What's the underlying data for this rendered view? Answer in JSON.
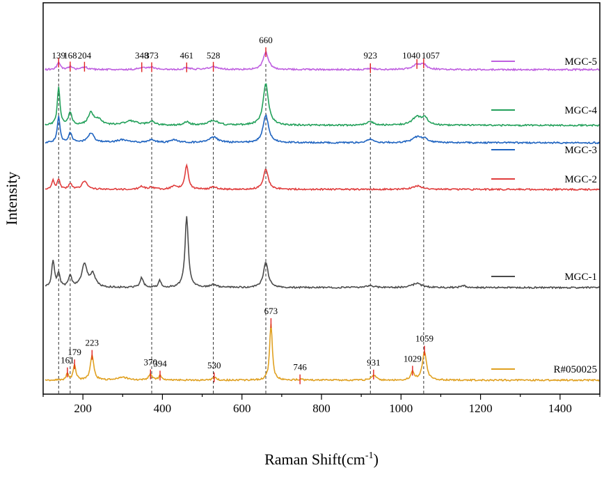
{
  "chart_data": {
    "type": "line",
    "xlabel": "Raman Shift(cm",
    "xlabel_sup": "-1",
    "xlabel_close": ")",
    "ylabel": "Intensity",
    "xlim": [
      100,
      1500
    ],
    "xticks": [
      200,
      400,
      600,
      800,
      1000,
      1200,
      1400
    ],
    "y_ticks_shown": false,
    "grid": false,
    "legend_placement": "right",
    "reference_lines": [
      139,
      168,
      373,
      528,
      660,
      923,
      1057
    ],
    "series": [
      {
        "name": "MGC-5",
        "color": "#BF5FE0",
        "baseline": 100,
        "peaks": [
          [
            139,
            10,
            5
          ],
          [
            168,
            4,
            6
          ],
          [
            204,
            4,
            8
          ],
          [
            348,
            3,
            10
          ],
          [
            373,
            3,
            10
          ],
          [
            461,
            3,
            8
          ],
          [
            528,
            4,
            14
          ],
          [
            660,
            25,
            8
          ],
          [
            923,
            2,
            10
          ],
          [
            1040,
            7,
            14
          ],
          [
            1057,
            6,
            8
          ]
        ],
        "peak_labels": [
          139,
          168,
          204,
          348,
          373,
          461,
          528,
          660,
          923,
          1040,
          1057
        ]
      },
      {
        "name": "MGC-4",
        "color": "#22A05A",
        "baseline": 180,
        "peaks": [
          [
            139,
            55,
            4
          ],
          [
            168,
            18,
            5
          ],
          [
            220,
            18,
            8
          ],
          [
            240,
            8,
            10
          ],
          [
            320,
            6,
            20
          ],
          [
            373,
            5,
            10
          ],
          [
            461,
            5,
            8
          ],
          [
            528,
            7,
            14
          ],
          [
            660,
            60,
            8
          ],
          [
            923,
            5,
            10
          ],
          [
            1040,
            12,
            14
          ],
          [
            1060,
            10,
            8
          ]
        ],
        "peak_labels": []
      },
      {
        "name": "MGC-3",
        "color": "#1E63C0",
        "baseline": 205,
        "peaks": [
          [
            139,
            38,
            4
          ],
          [
            168,
            14,
            5
          ],
          [
            220,
            14,
            9
          ],
          [
            300,
            4,
            20
          ],
          [
            373,
            4,
            10
          ],
          [
            430,
            4,
            10
          ],
          [
            528,
            8,
            14
          ],
          [
            660,
            40,
            8
          ],
          [
            923,
            5,
            10
          ],
          [
            1040,
            8,
            14
          ],
          [
            1060,
            6,
            8
          ]
        ],
        "peak_labels": []
      },
      {
        "name": "MGC-2",
        "color": "#E03C3C",
        "baseline": 272,
        "peaks": [
          [
            125,
            12,
            4
          ],
          [
            139,
            14,
            4
          ],
          [
            168,
            8,
            5
          ],
          [
            204,
            12,
            8
          ],
          [
            348,
            4,
            8
          ],
          [
            373,
            3,
            8
          ],
          [
            430,
            5,
            8
          ],
          [
            461,
            35,
            5
          ],
          [
            528,
            3,
            10
          ],
          [
            660,
            30,
            7
          ],
          [
            1040,
            5,
            14
          ]
        ],
        "peak_labels": []
      },
      {
        "name": "MGC-1",
        "color": "#4A4A4A",
        "baseline": 413,
        "peaks": [
          [
            125,
            38,
            4
          ],
          [
            139,
            20,
            4
          ],
          [
            168,
            16,
            5
          ],
          [
            204,
            33,
            8
          ],
          [
            225,
            18,
            8
          ],
          [
            348,
            14,
            5
          ],
          [
            393,
            10,
            4
          ],
          [
            461,
            102,
            5
          ],
          [
            528,
            4,
            10
          ],
          [
            660,
            36,
            7
          ],
          [
            923,
            3,
            10
          ],
          [
            1040,
            6,
            14
          ],
          [
            1157,
            3,
            6
          ]
        ],
        "peak_labels": []
      },
      {
        "name": "R#050025",
        "color": "#E0A020",
        "baseline": 546,
        "peaks": [
          [
            161,
            10,
            3
          ],
          [
            179,
            22,
            4
          ],
          [
            223,
            36,
            5
          ],
          [
            300,
            4,
            15
          ],
          [
            370,
            8,
            6
          ],
          [
            394,
            6,
            4
          ],
          [
            530,
            4,
            6
          ],
          [
            673,
            82,
            4
          ],
          [
            746,
            1,
            10
          ],
          [
            931,
            8,
            6
          ],
          [
            1029,
            12,
            5
          ],
          [
            1059,
            42,
            6
          ]
        ],
        "peak_labels": [
          161,
          179,
          223,
          370,
          394,
          530,
          673,
          746,
          931,
          1029,
          1059
        ]
      }
    ]
  }
}
